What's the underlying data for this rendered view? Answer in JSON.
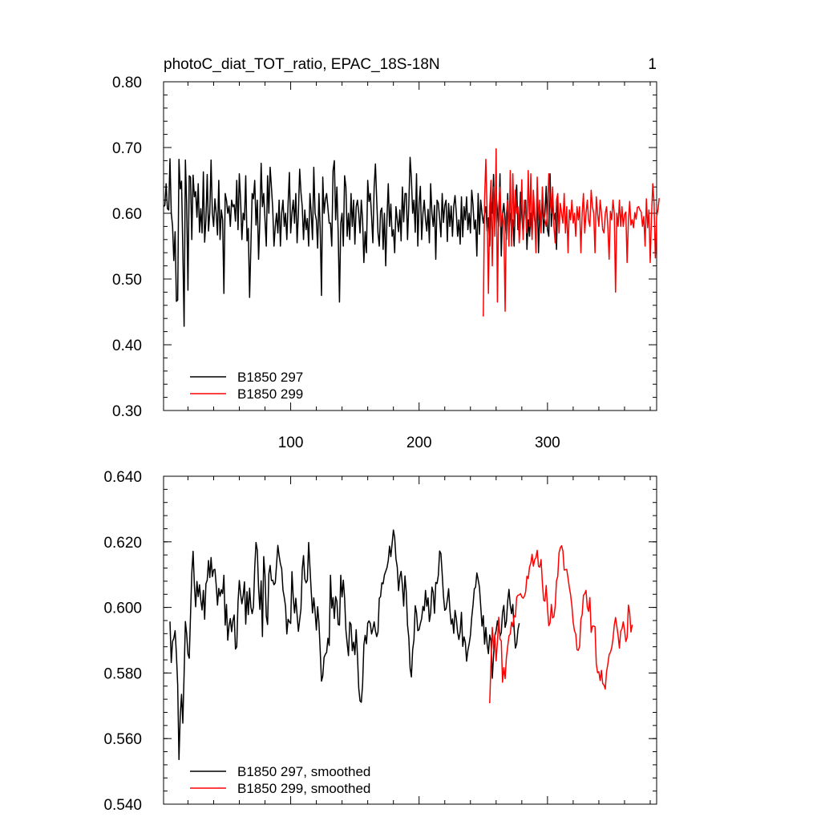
{
  "figure": {
    "title": "photoC_diat_TOT_ratio, EPAC_18S-18N",
    "page_label": "1"
  },
  "colors": {
    "series_a": "#000000",
    "series_b": "#ff0000"
  },
  "chart_data": [
    {
      "type": "line",
      "title": "photoC_diat_TOT_ratio, EPAC_18S-18N",
      "xlabel": "",
      "ylabel": "",
      "xlim": [
        1,
        385
      ],
      "ylim": [
        0.3,
        0.8
      ],
      "x_ticks": [
        100,
        200,
        300
      ],
      "x_tick_labels": [
        "100",
        "200",
        "300"
      ],
      "y_ticks": [
        0.3,
        0.4,
        0.5,
        0.6,
        0.7,
        0.8
      ],
      "y_tick_labels": [
        "0.30",
        "0.40",
        "0.50",
        "0.60",
        "0.70",
        "0.80"
      ],
      "legend": "bottom-left",
      "series": [
        {
          "name": "B1850 297",
          "color": "#000000",
          "x_start": 1,
          "values": [
            0.61,
            0.612,
            0.645,
            0.607,
            0.605,
            0.683,
            0.6,
            0.581,
            0.528,
            0.572,
            0.466,
            0.468,
            0.682,
            0.637,
            0.649,
            0.545,
            0.428,
            0.681,
            0.615,
            0.483,
            0.657,
            0.655,
            0.56,
            0.658,
            0.625,
            0.633,
            0.594,
            0.645,
            0.571,
            0.607,
            0.57,
            0.663,
            0.556,
            0.59,
            0.659,
            0.573,
            0.601,
            0.681,
            0.6,
            0.58,
            0.622,
            0.6,
            0.567,
            0.65,
            0.56,
            0.605,
            0.59,
            0.478,
            0.63,
            0.62,
            0.6,
            0.611,
            0.58,
            0.62,
            0.61,
            0.613,
            0.588,
            0.65,
            0.575,
            0.66,
            0.62,
            0.56,
            0.6,
            0.59,
            0.657,
            0.558,
            0.577,
            0.472,
            0.55,
            0.63,
            0.622,
            0.65,
            0.582,
            0.62,
            0.53,
            0.59,
            0.676,
            0.61,
            0.63,
            0.59,
            0.55,
            0.657,
            0.6,
            0.67,
            0.64,
            0.608,
            0.55,
            0.58,
            0.6,
            0.57,
            0.62,
            0.55,
            0.6,
            0.62,
            0.58,
            0.6,
            0.56,
            0.615,
            0.662,
            0.57,
            0.6,
            0.62,
            0.585,
            0.63,
            0.555,
            0.6,
            0.667,
            0.632,
            0.61,
            0.56,
            0.605,
            0.575,
            0.592,
            0.55,
            0.63,
            0.6,
            0.56,
            0.67,
            0.6,
            0.59,
            0.547,
            0.63,
            0.576,
            0.475,
            0.655,
            0.6,
            0.621,
            0.63,
            0.608,
            0.585,
            0.585,
            0.55,
            0.665,
            0.68,
            0.59,
            0.64,
            0.57,
            0.465,
            0.585,
            0.6,
            0.55,
            0.657,
            0.64,
            0.565,
            0.6,
            0.56,
            0.63,
            0.58,
            0.62,
            0.553,
            0.61,
            0.62,
            0.6,
            0.57,
            0.62,
            0.59,
            0.525,
            0.572,
            0.54,
            0.65,
            0.618,
            0.63,
            0.595,
            0.555,
            0.64,
            0.675,
            0.62,
            0.57,
            0.55,
            0.603,
            0.608,
            0.545,
            0.6,
            0.52,
            0.593,
            0.645,
            0.58,
            0.614,
            0.565,
            0.575,
            0.54,
            0.61,
            0.59,
            0.572,
            0.605,
            0.558,
            0.64,
            0.587,
            0.63,
            0.63,
            0.56,
            0.613,
            0.685,
            0.653,
            0.6,
            0.62,
            0.571,
            0.66,
            0.55,
            0.615,
            0.641,
            0.56,
            0.6,
            0.62,
            0.59,
            0.573,
            0.606,
            0.555,
            0.645,
            0.6,
            0.58,
            0.612,
            0.53,
            0.62,
            0.615,
            0.592,
            0.564,
            0.63,
            0.586,
            0.612,
            0.62,
            0.557,
            0.615,
            0.58,
            0.611,
            0.565,
            0.611,
            0.627,
            0.6,
            0.565,
            0.59,
            0.553,
            0.625,
            0.564,
            0.61,
            0.59,
            0.625,
            0.575,
            0.6,
            0.57,
            0.635,
            0.613,
            0.576,
            0.59,
            0.535,
            0.63,
            0.568,
            0.62,
            0.6,
            0.585,
            0.6,
            0.61,
            0.573,
            0.593,
            0.55,
            0.622,
            0.6,
            0.659,
            0.579,
            0.63,
            0.603,
            0.58,
            0.66,
            0.535,
            0.599,
            0.615,
            0.59,
            0.56,
            0.63,
            0.57,
            0.6,
            0.585,
            0.59,
            0.55,
            0.62,
            0.643,
            0.575,
            0.58,
            0.632,
            0.6,
            0.567,
            0.6,
            0.62,
            0.545,
            0.59,
            0.565,
            0.6,
            0.564,
            0.62,
            0.59,
            0.572,
            0.637,
            0.54,
            0.6,
            0.59,
            0.62,
            0.57,
            0.6,
            0.641,
            0.575,
            0.565,
            0.66,
            0.58,
            0.62,
            0.59,
            0.6,
            0.545,
            0.625
          ]
        },
        {
          "name": "B1850 299",
          "color": "#ff0000",
          "x_start": 250,
          "values": [
            0.443,
            0.62,
            0.682,
            0.6,
            0.478,
            0.61,
            0.65,
            0.52,
            0.64,
            0.565,
            0.698,
            0.465,
            0.61,
            0.64,
            0.58,
            0.6,
            0.585,
            0.451,
            0.6,
            0.62,
            0.55,
            0.665,
            0.55,
            0.66,
            0.58,
            0.635,
            0.6,
            0.61,
            0.555,
            0.59,
            0.651,
            0.56,
            0.62,
            0.6,
            0.57,
            0.665,
            0.58,
            0.66,
            0.56,
            0.635,
            0.6,
            0.54,
            0.655,
            0.59,
            0.62,
            0.57,
            0.64,
            0.6,
            0.59,
            0.58,
            0.6,
            0.66,
            0.62,
            0.6,
            0.64,
            0.58,
            0.555,
            0.62,
            0.63,
            0.57,
            0.615,
            0.6,
            0.585,
            0.63,
            0.57,
            0.61,
            0.54,
            0.605,
            0.59,
            0.62,
            0.585,
            0.6,
            0.565,
            0.61,
            0.59,
            0.61,
            0.54,
            0.6,
            0.63,
            0.57,
            0.6,
            0.62,
            0.59,
            0.58,
            0.635,
            0.61,
            0.6,
            0.54,
            0.625,
            0.6,
            0.58,
            0.62,
            0.6,
            0.575,
            0.57,
            0.6,
            0.61,
            0.58,
            0.53,
            0.603,
            0.59,
            0.62,
            0.6,
            0.48,
            0.6,
            0.58,
            0.62,
            0.58,
            0.61,
            0.58,
            0.598,
            0.602,
            0.525,
            0.588,
            0.618,
            0.582,
            0.59,
            0.578,
            0.601,
            0.591,
            0.609,
            0.61,
            0.605,
            0.602,
            0.58,
            0.595,
            0.55,
            0.622,
            0.578,
            0.605,
            0.525,
            0.595,
            0.645,
            0.615,
            0.532,
            0.595,
            0.605,
            0.623
          ]
        }
      ]
    },
    {
      "type": "line",
      "title": "",
      "xlabel": "",
      "ylabel": "",
      "xlim": [
        1,
        385
      ],
      "ylim": [
        0.54,
        0.64
      ],
      "x_ticks": [
        100,
        200,
        300
      ],
      "x_tick_labels": [],
      "y_ticks": [
        0.54,
        0.56,
        0.58,
        0.6,
        0.62,
        0.64
      ],
      "y_tick_labels": [
        "0.540",
        "0.560",
        "0.580",
        "0.600",
        "0.620",
        "0.640"
      ],
      "legend": "bottom-left",
      "series": [
        {
          "name": "B1850 297, smoothed",
          "color": "#000000",
          "x_start": 6,
          "values": [
            0.5957,
            0.5832,
            0.5896,
            0.5906,
            0.5929,
            0.5857,
            0.5764,
            0.5536,
            0.5672,
            0.5735,
            0.5647,
            0.5797,
            0.5957,
            0.5919,
            0.5858,
            0.5845,
            0.5976,
            0.6105,
            0.6171,
            0.6068,
            0.6002,
            0.6079,
            0.6033,
            0.6069,
            0.6022,
            0.5992,
            0.6052,
            0.5964,
            0.6072,
            0.6083,
            0.6143,
            0.6091,
            0.6152,
            0.6094,
            0.6115,
            0.6116,
            0.6068,
            0.6007,
            0.6058,
            0.6034,
            0.6054,
            0.6042,
            0.6098,
            0.5946,
            0.6009,
            0.59,
            0.5945,
            0.5966,
            0.5926,
            0.596,
            0.5977,
            0.5873,
            0.588,
            0.6017,
            0.6082,
            0.6041,
            0.6011,
            0.6036,
            0.6078,
            0.5949,
            0.6048,
            0.5978,
            0.6059,
            0.6001,
            0.5981,
            0.6002,
            0.6121,
            0.6198,
            0.6174,
            0.6059,
            0.5994,
            0.6081,
            0.5911,
            0.6155,
            0.6098,
            0.5973,
            0.5948,
            0.6102,
            0.6128,
            0.6082,
            0.6083,
            0.6069,
            0.6075,
            0.6131,
            0.6189,
            0.6158,
            0.6133,
            0.6118,
            0.6053,
            0.6031,
            0.6003,
            0.5919,
            0.5964,
            0.5956,
            0.5951,
            0.6109,
            0.603,
            0.5983,
            0.6028,
            0.5977,
            0.5927,
            0.5962,
            0.5995,
            0.6116,
            0.6158,
            0.6087,
            0.6075,
            0.6083,
            0.6198,
            0.6123,
            0.6049,
            0.5983,
            0.6029,
            0.5987,
            0.5931,
            0.6002,
            0.5953,
            0.5867,
            0.5775,
            0.5791,
            0.5848,
            0.5857,
            0.5863,
            0.5906,
            0.5884,
            0.6098,
            0.5998,
            0.603,
            0.5966,
            0.6033,
            0.6018,
            0.5948,
            0.5946,
            0.6098,
            0.6032,
            0.6083,
            0.6029,
            0.5931,
            0.589,
            0.5853,
            0.5955,
            0.5948,
            0.5868,
            0.5894,
            0.5856,
            0.5932,
            0.5854,
            0.5754,
            0.5715,
            0.5711,
            0.5764,
            0.5885,
            0.5915,
            0.5889,
            0.5952,
            0.5959,
            0.5951,
            0.5919,
            0.5934,
            0.5956,
            0.5928,
            0.5911,
            0.5925,
            0.6028,
            0.6033,
            0.6075,
            0.6072,
            0.6099,
            0.611,
            0.6121,
            0.6143,
            0.6187,
            0.6155,
            0.6195,
            0.6236,
            0.6213,
            0.6148,
            0.6123,
            0.6051,
            0.6093,
            0.611,
            0.6067,
            0.6004,
            0.6096,
            0.6047,
            0.5946,
            0.5908,
            0.5815,
            0.5788,
            0.5871,
            0.5901,
            0.6005,
            0.5984,
            0.5929,
            0.5932,
            0.5951,
            0.5966,
            0.6003,
            0.599,
            0.6052,
            0.6004,
            0.6029,
            0.5957,
            0.5983,
            0.6062,
            0.6046,
            0.5982,
            0.6076,
            0.6073,
            0.6098,
            0.6172,
            0.6164,
            0.6102,
            0.6034,
            0.5991,
            0.5996,
            0.6023,
            0.6057,
            0.5992,
            0.5949,
            0.5965,
            0.5921,
            0.5991,
            0.5966,
            0.5924,
            0.5902,
            0.5926,
            0.5985,
            0.5881,
            0.591,
            0.5894,
            0.5836,
            0.5869,
            0.5889,
            0.5916,
            0.597,
            0.6007,
            0.6056,
            0.6062,
            0.6105,
            0.6085,
            0.6062,
            0.6004,
            0.5943,
            0.5975,
            0.5888,
            0.5939,
            0.5888,
            0.5859,
            0.5916,
            0.5898,
            0.5784,
            0.5853,
            0.5912,
            0.5929,
            0.5959,
            0.5939,
            0.5912,
            0.5923,
            0.5985,
            0.6006,
            0.5939,
            0.5957,
            0.6019,
            0.6055,
            0.6007,
            0.5981,
            0.6009,
            0.5935,
            0.5876,
            0.5889,
            0.5932,
            0.5952
          ]
        },
        {
          "name": "B1850 299, smoothed",
          "color": "#ff0000",
          "x_start": 255,
          "values": [
            0.5708,
            0.5834,
            0.5939,
            0.5872,
            0.5918,
            0.5837,
            0.5894,
            0.597,
            0.5903,
            0.5898,
            0.5772,
            0.5816,
            0.5783,
            0.5847,
            0.5881,
            0.5913,
            0.5919,
            0.5955,
            0.5941,
            0.5975,
            0.5971,
            0.6031,
            0.6037,
            0.6038,
            0.6042,
            0.6032,
            0.6028,
            0.6034,
            0.6048,
            0.6095,
            0.6088,
            0.6123,
            0.6135,
            0.6162,
            0.6126,
            0.6145,
            0.6152,
            0.6174,
            0.6125,
            0.6123,
            0.6146,
            0.6076,
            0.6022,
            0.6019,
            0.6067,
            0.5997,
            0.5944,
            0.5953,
            0.6009,
            0.5968,
            0.5972,
            0.6004,
            0.6081,
            0.6095,
            0.6167,
            0.6182,
            0.6188,
            0.6172,
            0.6114,
            0.6115,
            0.6116,
            0.6089,
            0.6061,
            0.6038,
            0.6004,
            0.5955,
            0.5929,
            0.5919,
            0.5871,
            0.5869,
            0.5881,
            0.5964,
            0.5978,
            0.6037,
            0.6042,
            0.6052,
            0.6001,
            0.5988,
            0.603,
            0.5924,
            0.5943,
            0.5943,
            0.5941,
            0.5828,
            0.5801,
            0.5804,
            0.5777,
            0.5808,
            0.5768,
            0.5763,
            0.5751,
            0.5804,
            0.5827,
            0.5856,
            0.5863,
            0.5877,
            0.5904,
            0.5946,
            0.5969,
            0.5942,
            0.5914,
            0.5876,
            0.5927,
            0.5935,
            0.5956,
            0.5931,
            0.5896,
            0.5908,
            0.6007,
            0.5984,
            0.5925,
            0.5947
          ]
        }
      ]
    }
  ]
}
